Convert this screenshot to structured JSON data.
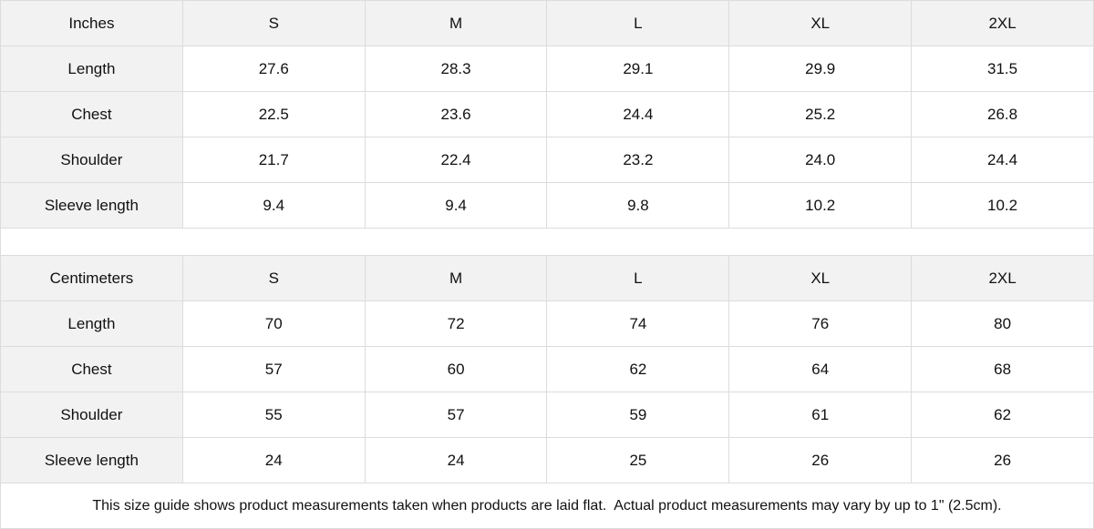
{
  "tables": [
    {
      "unit": "Inches",
      "sizes": [
        "S",
        "M",
        "L",
        "XL",
        "2XL"
      ],
      "rows": [
        {
          "label": "Length",
          "values": [
            "27.6",
            "28.3",
            "29.1",
            "29.9",
            "31.5"
          ]
        },
        {
          "label": "Chest",
          "values": [
            "22.5",
            "23.6",
            "24.4",
            "25.2",
            "26.8"
          ]
        },
        {
          "label": "Shoulder",
          "values": [
            "21.7",
            "22.4",
            "23.2",
            "24.0",
            "24.4"
          ]
        },
        {
          "label": "Sleeve length",
          "values": [
            "9.4",
            "9.4",
            "9.8",
            "10.2",
            "10.2"
          ]
        }
      ]
    },
    {
      "unit": "Centimeters",
      "sizes": [
        "S",
        "M",
        "L",
        "XL",
        "2XL"
      ],
      "rows": [
        {
          "label": "Length",
          "values": [
            "70",
            "72",
            "74",
            "76",
            "80"
          ]
        },
        {
          "label": "Chest",
          "values": [
            "57",
            "60",
            "62",
            "64",
            "68"
          ]
        },
        {
          "label": "Shoulder",
          "values": [
            "55",
            "57",
            "59",
            "61",
            "62"
          ]
        },
        {
          "label": "Sleeve length",
          "values": [
            "24",
            "24",
            "25",
            "26",
            "26"
          ]
        }
      ]
    }
  ],
  "note": "This size guide shows product measurements taken when products are laid flat.  Actual product measurements may vary by up to 1\" (2.5cm).",
  "colors": {
    "header_bg": "#f2f2f2",
    "border": "#dcdcdc"
  }
}
